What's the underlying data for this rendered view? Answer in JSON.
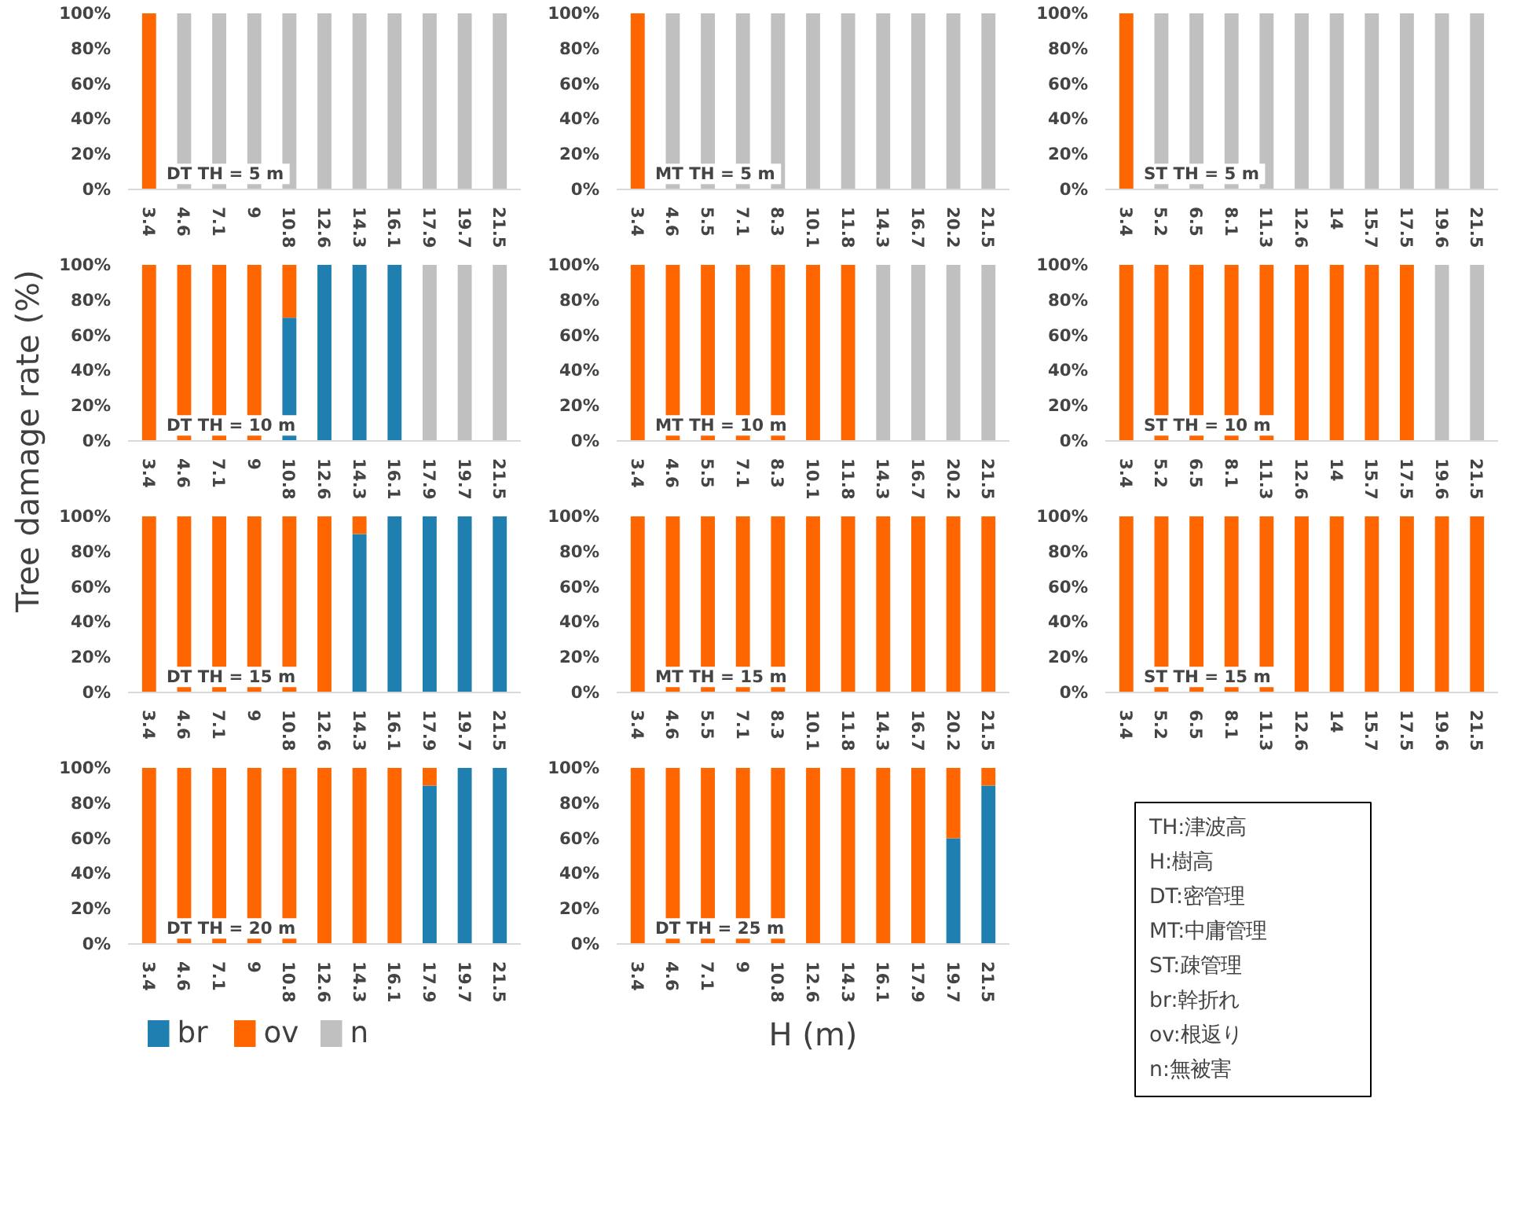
{
  "chart_data": [
    {
      "type": "bar",
      "stacked": true,
      "categories": [
        "3.4",
        "4.6",
        "7.1",
        "9",
        "10.8",
        "12.6",
        "14.3",
        "16.1",
        "17.9",
        "19.7",
        "21.5"
      ],
      "series": [
        {
          "color": "#ff6600",
          "values": [
            100,
            null,
            null,
            null,
            null,
            null,
            null,
            null,
            null,
            null,
            null
          ]
        },
        {
          "color": "#c0c0c0",
          "values": [
            null,
            100,
            100,
            100,
            100,
            100,
            100,
            100,
            100,
            100,
            100
          ]
        }
      ],
      "ylim": [
        0,
        100
      ],
      "yticks": [
        {
          "value": 0,
          "label": "0%"
        },
        {
          "value": 20,
          "label": "20%"
        },
        {
          "value": 40,
          "label": "40%"
        },
        {
          "value": 60,
          "label": "60%"
        },
        {
          "value": 80,
          "label": "80%"
        },
        {
          "value": 100,
          "label": "100%"
        }
      ],
      "annotations": [
        "DT  TH = 5 m"
      ]
    },
    {
      "type": "bar",
      "stacked": true,
      "categories": [
        "3.4",
        "4.6",
        "5.5",
        "7.1",
        "8.3",
        "10.1",
        "11.8",
        "14.3",
        "16.7",
        "20.2",
        "21.5"
      ],
      "series": [
        {
          "color": "#ff6600",
          "values": [
            100,
            null,
            null,
            null,
            null,
            null,
            null,
            null,
            null,
            null,
            null
          ]
        },
        {
          "color": "#c0c0c0",
          "values": [
            null,
            100,
            100,
            100,
            100,
            100,
            100,
            100,
            100,
            100,
            100
          ]
        }
      ],
      "ylim": [
        0,
        100
      ],
      "yticks": [
        {
          "value": 0,
          "label": "0%"
        },
        {
          "value": 20,
          "label": "20%"
        },
        {
          "value": 40,
          "label": "40%"
        },
        {
          "value": 60,
          "label": "60%"
        },
        {
          "value": 80,
          "label": "80%"
        },
        {
          "value": 100,
          "label": "100%"
        }
      ],
      "annotations": [
        "MT  TH = 5 m"
      ]
    },
    {
      "type": "bar",
      "stacked": true,
      "categories": [
        "3.4",
        "5.2",
        "6.5",
        "8.1",
        "11.3",
        "12.6",
        "14",
        "15.7",
        "17.5",
        "19.6",
        "21.5"
      ],
      "series": [
        {
          "color": "#ff6600",
          "values": [
            100,
            null,
            null,
            null,
            null,
            null,
            null,
            null,
            null,
            null,
            null
          ]
        },
        {
          "color": "#c0c0c0",
          "values": [
            null,
            100,
            100,
            100,
            100,
            100,
            100,
            100,
            100,
            100,
            100
          ]
        }
      ],
      "ylim": [
        0,
        100
      ],
      "yticks": [
        {
          "value": 0,
          "label": "0%"
        },
        {
          "value": 20,
          "label": "20%"
        },
        {
          "value": 40,
          "label": "40%"
        },
        {
          "value": 60,
          "label": "60%"
        },
        {
          "value": 80,
          "label": "80%"
        },
        {
          "value": 100,
          "label": "100%"
        }
      ],
      "annotations": [
        "ST  TH = 5 m"
      ]
    },
    {
      "type": "bar",
      "stacked": true,
      "categories": [
        "3.4",
        "4.6",
        "7.1",
        "9",
        "10.8",
        "12.6",
        "14.3",
        "16.1",
        "17.9",
        "19.7",
        "21.5"
      ],
      "series": [
        {
          "color": "#1f7fb0",
          "values": [
            null,
            null,
            null,
            null,
            70,
            100,
            100,
            100,
            null,
            null,
            null
          ]
        },
        {
          "color": "#ff6600",
          "values": [
            100,
            100,
            100,
            100,
            30,
            null,
            null,
            null,
            null,
            null,
            null
          ]
        },
        {
          "color": "#c0c0c0",
          "values": [
            null,
            null,
            null,
            null,
            null,
            null,
            null,
            null,
            100,
            100,
            100
          ]
        }
      ],
      "ylim": [
        0,
        100
      ],
      "yticks": [
        {
          "value": 0,
          "label": "0%"
        },
        {
          "value": 20,
          "label": "20%"
        },
        {
          "value": 40,
          "label": "40%"
        },
        {
          "value": 60,
          "label": "60%"
        },
        {
          "value": 80,
          "label": "80%"
        },
        {
          "value": 100,
          "label": "100%"
        }
      ],
      "annotations": [
        "DT  TH = 10 m"
      ]
    },
    {
      "type": "bar",
      "stacked": true,
      "categories": [
        "3.4",
        "4.6",
        "5.5",
        "7.1",
        "8.3",
        "10.1",
        "11.8",
        "14.3",
        "16.7",
        "20.2",
        "21.5"
      ],
      "series": [
        {
          "color": "#ff6600",
          "values": [
            100,
            100,
            100,
            100,
            100,
            100,
            100,
            null,
            null,
            null,
            null
          ]
        },
        {
          "color": "#c0c0c0",
          "values": [
            null,
            null,
            null,
            null,
            null,
            null,
            null,
            100,
            100,
            100,
            100
          ]
        }
      ],
      "ylim": [
        0,
        100
      ],
      "yticks": [
        {
          "value": 0,
          "label": "0%"
        },
        {
          "value": 20,
          "label": "20%"
        },
        {
          "value": 40,
          "label": "40%"
        },
        {
          "value": 60,
          "label": "60%"
        },
        {
          "value": 80,
          "label": "80%"
        },
        {
          "value": 100,
          "label": "100%"
        }
      ],
      "annotations": [
        "MT  TH = 10 m"
      ]
    },
    {
      "type": "bar",
      "stacked": true,
      "categories": [
        "3.4",
        "5.2",
        "6.5",
        "8.1",
        "11.3",
        "12.6",
        "14",
        "15.7",
        "17.5",
        "19.6",
        "21.5"
      ],
      "series": [
        {
          "color": "#ff6600",
          "values": [
            100,
            100,
            100,
            100,
            100,
            100,
            100,
            100,
            100,
            null,
            null
          ]
        },
        {
          "color": "#c0c0c0",
          "values": [
            null,
            null,
            null,
            null,
            null,
            null,
            null,
            null,
            null,
            100,
            100
          ]
        }
      ],
      "ylim": [
        0,
        100
      ],
      "yticks": [
        {
          "value": 0,
          "label": "0%"
        },
        {
          "value": 20,
          "label": "20%"
        },
        {
          "value": 40,
          "label": "40%"
        },
        {
          "value": 60,
          "label": "60%"
        },
        {
          "value": 80,
          "label": "80%"
        },
        {
          "value": 100,
          "label": "100%"
        }
      ],
      "annotations": [
        "ST  TH = 10 m"
      ]
    },
    {
      "type": "bar",
      "stacked": true,
      "ylabel": "Tree damage rate (%)",
      "categories": [
        "3.4",
        "4.6",
        "7.1",
        "9",
        "10.8",
        "12.6",
        "14.3",
        "16.1",
        "17.9",
        "19.7",
        "21.5"
      ],
      "series": [
        {
          "color": "#1f7fb0",
          "values": [
            null,
            null,
            null,
            null,
            null,
            null,
            90,
            100,
            100,
            100,
            100
          ]
        },
        {
          "color": "#ff6600",
          "values": [
            100,
            100,
            100,
            100,
            100,
            100,
            10,
            null,
            null,
            null,
            null
          ]
        }
      ],
      "ylim": [
        0,
        100
      ],
      "yticks": [
        {
          "value": 0,
          "label": "0%"
        },
        {
          "value": 20,
          "label": "20%"
        },
        {
          "value": 40,
          "label": "40%"
        },
        {
          "value": 60,
          "label": "60%"
        },
        {
          "value": 80,
          "label": "80%"
        },
        {
          "value": 100,
          "label": "100%"
        }
      ],
      "annotations": [
        "DT  TH = 15 m"
      ]
    },
    {
      "type": "bar",
      "stacked": true,
      "categories": [
        "3.4",
        "4.6",
        "5.5",
        "7.1",
        "8.3",
        "10.1",
        "11.8",
        "14.3",
        "16.7",
        "20.2",
        "21.5"
      ],
      "series": [
        {
          "color": "#ff6600",
          "values": [
            100,
            100,
            100,
            100,
            100,
            100,
            100,
            100,
            100,
            100,
            100
          ]
        }
      ],
      "ylim": [
        0,
        100
      ],
      "yticks": [
        {
          "value": 0,
          "label": "0%"
        },
        {
          "value": 20,
          "label": "20%"
        },
        {
          "value": 40,
          "label": "40%"
        },
        {
          "value": 60,
          "label": "60%"
        },
        {
          "value": 80,
          "label": "80%"
        },
        {
          "value": 100,
          "label": "100%"
        }
      ],
      "annotations": [
        "MT  TH = 15 m"
      ]
    },
    {
      "type": "bar",
      "stacked": true,
      "categories": [
        "3.4",
        "5.2",
        "6.5",
        "8.1",
        "11.3",
        "12.6",
        "14",
        "15.7",
        "17.5",
        "19.6",
        "21.5"
      ],
      "series": [
        {
          "color": "#ff6600",
          "values": [
            100,
            100,
            100,
            100,
            100,
            100,
            100,
            100,
            100,
            100,
            100
          ]
        }
      ],
      "ylim": [
        0,
        100
      ],
      "yticks": [
        {
          "value": 0,
          "label": "0%"
        },
        {
          "value": 20,
          "label": "20%"
        },
        {
          "value": 40,
          "label": "40%"
        },
        {
          "value": 60,
          "label": "60%"
        },
        {
          "value": 80,
          "label": "80%"
        },
        {
          "value": 100,
          "label": "100%"
        }
      ],
      "annotations": [
        "ST  TH = 15 m"
      ]
    },
    {
      "type": "bar",
      "stacked": true,
      "legend": "bottom",
      "categories": [
        "3.4",
        "4.6",
        "7.1",
        "9",
        "10.8",
        "12.6",
        "14.3",
        "16.1",
        "17.9",
        "19.7",
        "21.5"
      ],
      "series": [
        {
          "name": "br",
          "color": "#1f7fb0",
          "values": [
            null,
            null,
            null,
            null,
            null,
            null,
            null,
            null,
            90,
            100,
            100
          ]
        },
        {
          "name": "ov",
          "color": "#ff6600",
          "values": [
            100,
            100,
            100,
            100,
            100,
            100,
            100,
            100,
            10,
            null,
            null
          ]
        },
        {
          "name": "n",
          "color": "#c0c0c0",
          "values": [
            null,
            null,
            null,
            null,
            null,
            null,
            null,
            null,
            null,
            null,
            null
          ]
        }
      ],
      "ylim": [
        0,
        100
      ],
      "yticks": [
        {
          "value": 0,
          "label": "0%"
        },
        {
          "value": 20,
          "label": "20%"
        },
        {
          "value": 40,
          "label": "40%"
        },
        {
          "value": 60,
          "label": "60%"
        },
        {
          "value": 80,
          "label": "80%"
        },
        {
          "value": 100,
          "label": "100%"
        }
      ],
      "annotations": [
        "DT  TH = 20 m"
      ]
    },
    {
      "type": "bar",
      "stacked": true,
      "xlabel": "H (m)",
      "categories": [
        "3.4",
        "4.6",
        "7.1",
        "9",
        "10.8",
        "12.6",
        "14.3",
        "16.1",
        "17.9",
        "19.7",
        "21.5"
      ],
      "series": [
        {
          "color": "#1f7fb0",
          "values": [
            null,
            null,
            null,
            null,
            null,
            null,
            null,
            null,
            null,
            60,
            90
          ]
        },
        {
          "color": "#ff6600",
          "values": [
            100,
            100,
            100,
            100,
            100,
            100,
            100,
            100,
            100,
            40,
            10
          ]
        }
      ],
      "ylim": [
        0,
        100
      ],
      "yticks": [
        {
          "value": 0,
          "label": "0%"
        },
        {
          "value": 20,
          "label": "20%"
        },
        {
          "value": 40,
          "label": "40%"
        },
        {
          "value": 60,
          "label": "60%"
        },
        {
          "value": 80,
          "label": "80%"
        },
        {
          "value": 100,
          "label": "100%"
        }
      ],
      "annotations": [
        "DT  TH = 25 m"
      ]
    },
    {
      "type": "other",
      "annotations": [
        "TH:津波高",
        "H:樹高",
        "DT:密管理",
        "MT:中庸管理",
        "ST:疎管理",
        "br:幹折れ",
        "ov:根返り",
        "n:無被害"
      ]
    }
  ]
}
